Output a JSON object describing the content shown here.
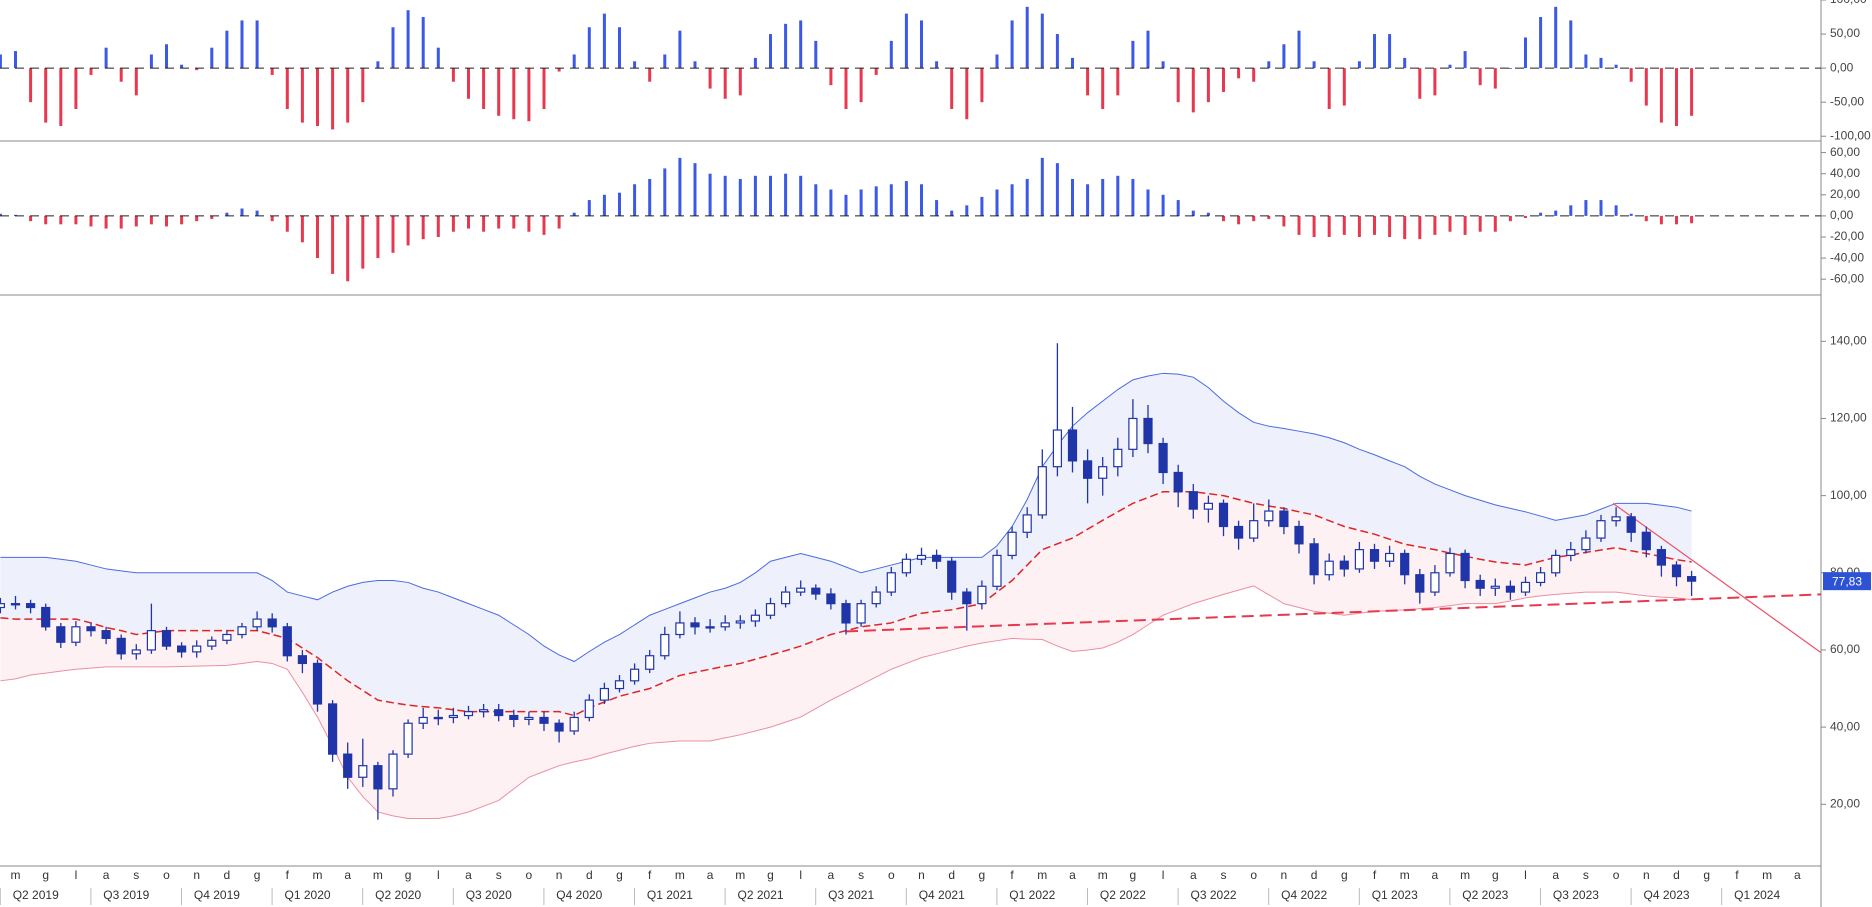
{
  "chart_data": [
    {
      "type": "bar",
      "ylim": [
        -107,
        100
      ],
      "yticks": [
        {
          "value": -100,
          "label": "-100,00"
        },
        {
          "value": -50,
          "label": "-50,00"
        },
        {
          "value": 0,
          "label": "0,00"
        },
        {
          "value": 50,
          "label": "50,00"
        },
        {
          "value": 100,
          "label": "100,00"
        }
      ],
      "colors": {
        "positive": "#3b58e6",
        "negative": "#e8384f"
      },
      "values": [
        20,
        25,
        -50,
        -80,
        -85,
        -60,
        -10,
        30,
        -20,
        -40,
        20,
        35,
        5,
        -3,
        30,
        55,
        70,
        70,
        -10,
        -60,
        -80,
        -85,
        -90,
        -80,
        -50,
        10,
        60,
        85,
        75,
        30,
        -20,
        -45,
        -60,
        -70,
        -75,
        -78,
        -60,
        -5,
        20,
        60,
        80,
        60,
        10,
        -20,
        20,
        55,
        10,
        -30,
        -45,
        -40,
        15,
        50,
        65,
        70,
        40,
        -25,
        -60,
        -50,
        -10,
        40,
        80,
        70,
        10,
        -60,
        -75,
        -50,
        20,
        70,
        90,
        80,
        50,
        15,
        -40,
        -60,
        -40,
        40,
        55,
        10,
        -50,
        -65,
        -50,
        -35,
        -15,
        -20,
        10,
        35,
        55,
        10,
        -60,
        -55,
        10,
        50,
        50,
        15,
        -45,
        -40,
        5,
        25,
        -25,
        -30,
        0,
        45,
        75,
        90,
        70,
        20,
        15,
        5,
        -20,
        -55,
        -80,
        -85,
        -70
      ]
    },
    {
      "type": "bar",
      "ylim": [
        -75,
        71
      ],
      "yticks": [
        {
          "value": -60,
          "label": "-60,00"
        },
        {
          "value": -40,
          "label": "-40,00"
        },
        {
          "value": -20,
          "label": "-20,00"
        },
        {
          "value": 0,
          "label": "0,00"
        },
        {
          "value": 20,
          "label": "20,00"
        },
        {
          "value": 40,
          "label": "40,00"
        },
        {
          "value": 60,
          "label": "60,00"
        }
      ],
      "colors": {
        "positive": "#3b58e6",
        "negative": "#e8384f"
      },
      "values": [
        2,
        1,
        -5,
        -8,
        -8,
        -8,
        -10,
        -12,
        -12,
        -10,
        -8,
        -10,
        -8,
        -5,
        -3,
        3,
        7,
        5,
        -5,
        -15,
        -25,
        -40,
        -55,
        -62,
        -50,
        -40,
        -35,
        -28,
        -22,
        -20,
        -15,
        -12,
        -15,
        -12,
        -12,
        -15,
        -18,
        -12,
        3,
        15,
        20,
        22,
        30,
        35,
        45,
        55,
        50,
        40,
        38,
        35,
        38,
        38,
        40,
        38,
        30,
        25,
        20,
        25,
        28,
        30,
        33,
        30,
        15,
        5,
        10,
        18,
        25,
        30,
        35,
        55,
        50,
        35,
        30,
        35,
        38,
        35,
        25,
        20,
        15,
        5,
        3,
        -5,
        -8,
        -5,
        -3,
        -10,
        -18,
        -20,
        -20,
        -18,
        -20,
        -18,
        -20,
        -22,
        -22,
        -18,
        -15,
        -18,
        -15,
        -15,
        -5,
        -2,
        3,
        5,
        10,
        15,
        15,
        10,
        2,
        -5,
        -8,
        -8,
        -7
      ]
    },
    {
      "type": "candlestick",
      "ylim": [
        4,
        152
      ],
      "yticks": [
        {
          "value": 20,
          "label": "20,00"
        },
        {
          "value": 40,
          "label": "40,00"
        },
        {
          "value": 60,
          "label": "60,00"
        },
        {
          "value": 80,
          "label": "80,00"
        },
        {
          "value": 100,
          "label": "100,00"
        },
        {
          "value": 120,
          "label": "120,00"
        },
        {
          "value": 140,
          "label": "140,00"
        }
      ],
      "candle_color": "#1f35a8",
      "open": [
        71,
        72,
        72,
        71,
        66,
        62,
        66,
        65,
        63,
        59,
        60,
        65,
        61,
        59.5,
        61,
        62.5,
        64,
        66,
        68,
        66,
        58.5,
        56.5,
        46,
        33,
        27,
        30,
        24,
        33,
        41,
        42.5,
        42.5,
        43,
        44,
        44.5,
        43,
        42,
        42.5,
        41,
        39,
        42.5,
        47,
        50,
        52,
        55,
        58.5,
        64,
        67,
        66,
        66,
        67,
        67.5,
        69,
        72,
        75,
        76,
        74.5,
        72,
        67,
        72,
        75,
        80,
        83.5,
        84.5,
        83,
        75,
        72,
        76.5,
        84.5,
        90.5,
        95,
        107.5,
        117,
        109,
        104.5,
        107.5,
        112,
        120,
        113.5,
        106,
        101,
        96.5,
        98,
        92,
        89,
        93.5,
        96,
        92,
        87.5,
        79.5,
        83,
        81,
        86,
        83,
        85,
        79.5,
        75,
        80,
        85,
        78,
        76,
        76.5,
        75,
        77.5,
        80,
        84.5,
        86,
        89,
        93.5,
        94.5,
        90.5,
        86,
        82,
        79
      ],
      "high": [
        73.5,
        74,
        73,
        72,
        67,
        67.5,
        67,
        66,
        64,
        61.5,
        72,
        66,
        62,
        62.5,
        63.5,
        65,
        67,
        70,
        69.5,
        67,
        60,
        57.5,
        47,
        36,
        37,
        31,
        34,
        42,
        45,
        44.5,
        45,
        45.5,
        46,
        46,
        44.5,
        44,
        44,
        42,
        44,
        48.5,
        51.5,
        53.5,
        56.5,
        60,
        66,
        70,
        68.5,
        68,
        69,
        69,
        70.5,
        73.5,
        76.5,
        78,
        77,
        76,
        73,
        73,
        76.5,
        81.5,
        85,
        86.5,
        86,
        84,
        76,
        78,
        86,
        92,
        97,
        112,
        139.5,
        123,
        112,
        110,
        115,
        125,
        123.5,
        115,
        108,
        103,
        100,
        99,
        93.5,
        98,
        99,
        97,
        93.5,
        89,
        85,
        84.5,
        88,
        87.5,
        87,
        86,
        81,
        82,
        86.5,
        86,
        79.5,
        78.5,
        78,
        79,
        81.5,
        86,
        88,
        91,
        95,
        97,
        95.5,
        92,
        87,
        83,
        80.5
      ],
      "low": [
        69.5,
        70.5,
        69.5,
        65,
        60.5,
        61,
        63.5,
        61.5,
        57.5,
        57.5,
        59,
        60,
        58,
        58,
        60,
        61.5,
        63,
        65,
        64.5,
        57,
        54,
        44,
        31,
        24,
        24.5,
        16,
        22,
        32,
        39.5,
        40.5,
        41,
        42,
        42.5,
        41.5,
        40,
        40.5,
        39,
        36,
        38,
        41.5,
        46,
        49,
        51,
        54,
        57.5,
        63,
        64,
        64.5,
        65,
        65.5,
        66,
        68,
        71,
        74,
        73,
        70.5,
        64,
        66,
        71,
        74,
        79,
        82,
        81,
        73,
        65,
        70.5,
        75.5,
        83.5,
        89,
        94,
        105,
        106,
        98,
        100,
        105,
        110,
        111,
        103,
        97,
        94,
        93,
        89.5,
        86,
        88,
        92,
        90,
        85,
        77,
        78,
        79,
        80,
        81,
        81.5,
        77,
        72,
        74,
        79,
        76,
        74,
        74,
        73,
        74,
        76.5,
        79,
        83,
        85,
        88,
        92,
        88,
        84,
        79,
        76.5,
        74
      ],
      "close": [
        72,
        72,
        71,
        66,
        62,
        66,
        65,
        63,
        59,
        60,
        65,
        61,
        59.5,
        61,
        62.5,
        64,
        66,
        68,
        66,
        58.5,
        56.5,
        46,
        33,
        27,
        30,
        24,
        33,
        41,
        42.5,
        42.5,
        43,
        44,
        44.5,
        43,
        42,
        42.5,
        41,
        39,
        42.5,
        47,
        50,
        52,
        55,
        58.5,
        64,
        67,
        66,
        66,
        67,
        67.5,
        69,
        72,
        75,
        76,
        74.5,
        72,
        67,
        72,
        75,
        80,
        83.5,
        84.5,
        83,
        75,
        72,
        76.5,
        84.5,
        90.5,
        95,
        107.5,
        117,
        109,
        104.5,
        107.5,
        112,
        120,
        113.5,
        106,
        101,
        96.5,
        98,
        92,
        89,
        93.5,
        96,
        92,
        87.5,
        79.5,
        83,
        81,
        86,
        83,
        85,
        79.5,
        75,
        80,
        85,
        78,
        76,
        76.5,
        75,
        77.5,
        80,
        84.5,
        86,
        89,
        93.5,
        94.5,
        90.5,
        86,
        82,
        79,
        77.83
      ],
      "bands": {
        "upper": [
          84,
          84,
          84,
          84,
          83.5,
          83,
          82,
          81,
          80.5,
          80,
          80,
          80,
          80,
          80,
          80,
          80,
          80,
          80,
          78,
          75,
          74,
          73,
          75,
          76.5,
          77.5,
          78,
          78,
          77.5,
          76,
          75,
          73.5,
          72,
          70.5,
          69,
          66.5,
          64,
          61,
          58.7,
          57,
          59.6,
          62,
          64,
          66.5,
          69,
          70.5,
          72,
          73.5,
          75,
          76,
          77.5,
          80,
          83,
          84,
          85,
          84,
          83,
          81.5,
          80,
          81,
          82,
          83,
          84,
          84,
          84,
          84,
          84,
          87,
          92,
          99,
          107.5,
          113,
          118,
          121.5,
          124.5,
          127.5,
          130,
          131,
          131.7,
          131.5,
          130.7,
          128,
          124.5,
          121.5,
          119,
          118,
          117.4,
          116.7,
          116,
          115,
          113.7,
          112,
          110.6,
          109,
          107.5,
          105,
          103,
          101.5,
          100,
          98.8,
          97.6,
          96.7,
          95.8,
          94.7,
          93.6,
          94.3,
          95,
          96.5,
          98,
          98,
          98,
          97.5,
          97,
          96
        ],
        "middle": [
          68.3,
          68,
          68,
          68,
          68,
          68,
          67,
          65.8,
          65,
          64,
          64.5,
          65,
          65,
          65,
          65,
          65,
          65,
          65,
          64,
          63,
          60.5,
          58,
          55,
          52,
          49.5,
          47,
          46.3,
          45.7,
          45.3,
          45,
          44.5,
          44,
          44,
          44,
          44,
          44,
          44,
          44,
          43,
          45,
          46.5,
          48,
          49,
          50,
          51.7,
          53.4,
          54.2,
          55,
          55.8,
          56.5,
          57.6,
          58.7,
          59.8,
          61,
          62.5,
          64,
          65,
          66,
          66.5,
          67,
          68.3,
          69.5,
          70,
          70.4,
          71.2,
          72,
          75,
          78,
          82,
          86,
          87.5,
          89,
          91.3,
          93.6,
          95.8,
          98,
          99.5,
          101,
          101,
          101,
          100.5,
          100,
          99,
          98,
          97.3,
          96.7,
          95.8,
          95,
          93.5,
          92,
          91,
          90,
          88.7,
          87.4,
          86.7,
          86,
          85.1,
          84.3,
          83.5,
          82.8,
          82.4,
          82,
          83,
          84,
          84.6,
          85.3,
          85.9,
          86.5,
          85.7,
          85,
          84.2,
          83.4,
          82.8
        ],
        "lower": [
          52,
          52.5,
          53.5,
          54,
          54.5,
          55,
          55.3,
          55.6,
          55.6,
          55.6,
          55.6,
          55.6,
          55.7,
          55.8,
          55.9,
          56,
          56.5,
          57,
          56.5,
          55,
          49,
          42.6,
          35,
          27,
          22,
          18,
          17,
          16.3,
          16.3,
          16.3,
          17,
          18,
          19.5,
          21,
          24,
          27,
          28.5,
          30,
          31,
          31.8,
          33,
          34,
          35,
          35.8,
          36.1,
          36.4,
          36.4,
          36.4,
          37.2,
          38,
          39,
          40,
          41.3,
          42.6,
          44.8,
          47,
          49,
          51,
          53,
          55,
          56.5,
          58,
          59,
          60,
          61,
          61.8,
          62.4,
          63,
          62.8,
          62.7,
          61,
          59.6,
          60,
          60.5,
          62,
          64,
          66.5,
          69,
          70.5,
          72,
          73.2,
          74.4,
          75.5,
          76.6,
          74.3,
          72,
          71,
          70,
          69.5,
          69,
          69.5,
          70,
          70.2,
          70.4,
          70.7,
          71,
          71.5,
          72,
          72,
          72,
          72.7,
          73.5,
          74,
          74.4,
          74.7,
          75,
          75,
          75,
          74.5,
          74,
          73.7,
          73.5,
          73
        ]
      },
      "band_colors": {
        "upper": "#4a6be0",
        "middle": "#e02424",
        "lower": "#ec8fa0",
        "upper_fill": "#eef0fb",
        "lower_fill": "#fdf1f3"
      },
      "trendlines": [
        {
          "start": 64.8,
          "end": 74.4,
          "style": "dashed",
          "color": "#e8384f"
        },
        {
          "start": 98,
          "end": 59.3,
          "style": "solid",
          "color": "#f0506a"
        }
      ],
      "last_price": {
        "value": 77.83,
        "label": "77,83",
        "color": "#2e52d6"
      }
    }
  ],
  "x_axis_labels": {
    "months": [
      "m",
      "g",
      "l",
      "a",
      "s",
      "o",
      "n",
      "d",
      "g",
      "f",
      "m",
      "a",
      "m",
      "g",
      "l",
      "a",
      "s",
      "o",
      "n",
      "d",
      "g",
      "f",
      "m",
      "a",
      "m",
      "g",
      "l",
      "a",
      "s",
      "o",
      "n",
      "d",
      "g",
      "f",
      "m",
      "a",
      "m",
      "g",
      "l",
      "a",
      "s",
      "o",
      "n",
      "d",
      "g",
      "f",
      "m",
      "a",
      "m",
      "g",
      "l",
      "a",
      "s",
      "o",
      "n",
      "d",
      "g",
      "f",
      "m",
      "a"
    ],
    "quarters": [
      "Q2 2019",
      "Q3 2019",
      "Q4 2019",
      "Q1 2020",
      "Q2 2020",
      "Q3 2020",
      "Q4 2020",
      "Q1 2021",
      "Q2 2021",
      "Q3 2021",
      "Q4 2021",
      "Q1 2022",
      "Q2 2022",
      "Q3 2022",
      "Q4 2022",
      "Q1 2023",
      "Q2 2023",
      "Q3 2023",
      "Q4 2023",
      "Q1 2024"
    ]
  }
}
